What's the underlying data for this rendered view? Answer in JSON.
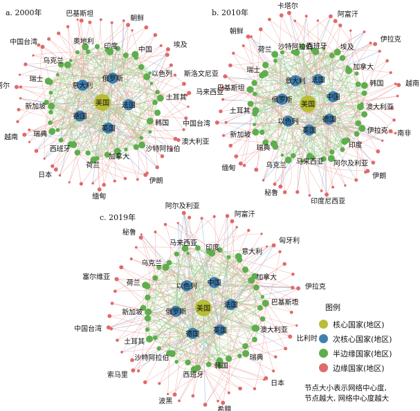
{
  "panels": [
    {
      "title": "a. 2000年",
      "core": [
        "美国"
      ],
      "subcore": [
        "俄罗斯",
        "法国",
        "英国",
        "德国",
        "意大利"
      ],
      "semi": [
        "印度",
        "中国",
        "以色列",
        "土耳其",
        "韩国",
        "沙特阿拉伯",
        "加拿大",
        "荷兰",
        "西班牙",
        "瑞典",
        "新加坡",
        "瑞士",
        "乌克兰",
        "奥地利"
      ],
      "periph": [
        "朝鲜",
        "埃及",
        "马来西亚",
        "澳大利亚",
        "伊朗",
        "缅甸",
        "日本",
        "越南",
        "卡塔尔",
        "中国台湾",
        "巴基斯坦"
      ]
    },
    {
      "title": "b. 2010年",
      "core": [
        "美国"
      ],
      "subcore": [
        "法国",
        "中国",
        "德国",
        "英国",
        "以色列",
        "俄罗斯",
        "意大利"
      ],
      "semi": [
        "西班牙",
        "埃及",
        "加拿大",
        "韩国",
        "澳大利亚",
        "伊拉克",
        "印度",
        "阿尔及利亚",
        "马来西亚",
        "乌克兰",
        "瑞典",
        "新加坡",
        "土耳其",
        "巴基斯坦",
        "瑞士",
        "荷兰",
        "沙特阿拉伯"
      ],
      "periph": [
        "阿富汗",
        "伊拉克",
        "越南",
        "南非",
        "伊朗",
        "印度尼西亚",
        "秘鲁",
        "缅甸",
        "中国台湾",
        "斯洛文尼亚",
        "朝鲜",
        "卡塔尔"
      ]
    },
    {
      "title": "c. 2019年",
      "core": [
        "美国"
      ],
      "subcore": [
        "中国",
        "法国",
        "英国",
        "德国",
        "俄罗斯",
        "以色列"
      ],
      "semi": [
        "印度",
        "意大利",
        "加拿大",
        "巴基斯坦",
        "澳大利亚",
        "瑞典",
        "韩国",
        "西班牙",
        "沙特阿拉伯",
        "土耳其",
        "新加坡",
        "荷兰",
        "乌克兰",
        "马来西亚"
      ],
      "periph": [
        "阿富汗",
        "匈牙利",
        "伊拉克",
        "比利时",
        "日本",
        "希腊",
        "波黑",
        "索马里",
        "中国台湾",
        "塞尔维亚",
        "秘鲁",
        "阿尔及利亚"
      ]
    }
  ],
  "legend": {
    "title": "图例",
    "items": [
      {
        "label": "核心国家(地区)",
        "color": "#b9bd34"
      },
      {
        "label": "次核心国家(地区)",
        "color": "#3f7fb0"
      },
      {
        "label": "半边缘国家(地区)",
        "color": "#5eae4e"
      },
      {
        "label": "边缘国家(地区)",
        "color": "#e06a6a"
      }
    ],
    "note_line1": "节点大小表示网络中心度,",
    "note_line2": "节点越大, 网络中心度越大"
  },
  "colors": {
    "core": "#b9bd34",
    "subcore": "#3f7fb0",
    "semi": "#5eae4e",
    "periph": "#e06a6a",
    "edge_semi": "#9ccf86",
    "edge_core": "#8bb8d8",
    "edge_periph": "#eea3a3"
  }
}
